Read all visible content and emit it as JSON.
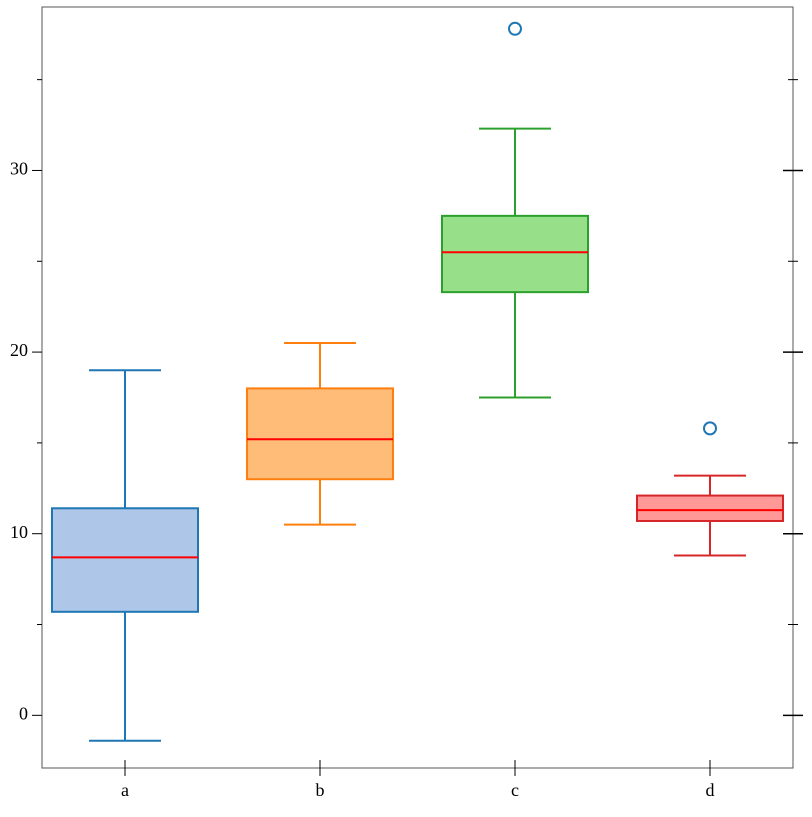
{
  "chart_data": {
    "type": "box",
    "categories": [
      "a",
      "b",
      "c",
      "d"
    ],
    "boxes": [
      {
        "low": -1.4,
        "q1": 5.7,
        "median": 8.7,
        "q3": 11.4,
        "high": 19.0,
        "outliers": [],
        "color": "#1f77b4",
        "fill": "#aec7e8"
      },
      {
        "low": 10.5,
        "q1": 13.0,
        "median": 15.2,
        "q3": 18.0,
        "high": 20.5,
        "outliers": [],
        "color": "#ff7f0e",
        "fill": "#ffbb78"
      },
      {
        "low": 17.5,
        "q1": 23.3,
        "median": 25.5,
        "q3": 27.5,
        "high": 32.3,
        "outliers": [
          37.8
        ],
        "color": "#2ca02c",
        "fill": "#98df8a"
      },
      {
        "low": 8.8,
        "q1": 10.7,
        "median": 11.3,
        "q3": 12.1,
        "high": 13.2,
        "outliers": [
          15.8
        ],
        "color": "#d62728",
        "fill": "#ff9896"
      }
    ],
    "median_color": "#ff0000",
    "outlier_color": "#1f77b4",
    "ylim": [
      -2.9,
      39.0
    ],
    "yticks": [
      0,
      10,
      20,
      30
    ],
    "yminor_ticks": [
      5,
      15,
      25,
      35
    ]
  }
}
